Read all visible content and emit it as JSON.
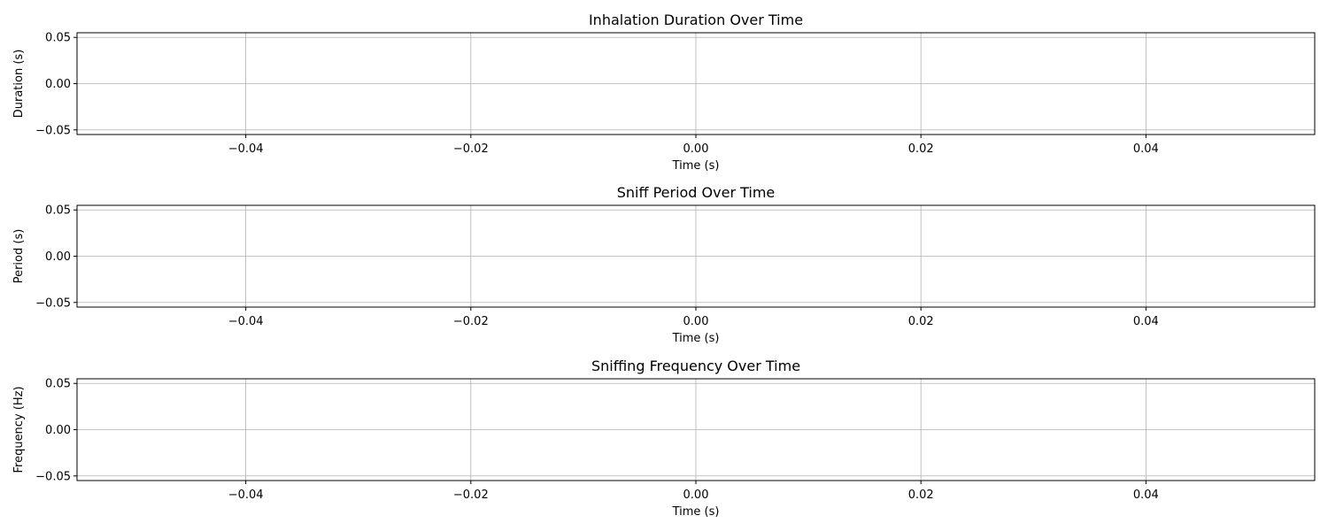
{
  "figure": {
    "grid": true,
    "grid_color": "#b0b0b0",
    "axes_color": "#000000",
    "background": "#ffffff"
  },
  "chart_data": [
    {
      "type": "line",
      "title": "Inhalation Duration Over Time",
      "xlabel": "Time (s)",
      "ylabel": "Duration (s)",
      "xlim": [
        -0.055,
        0.055
      ],
      "ylim": [
        -0.055,
        0.055
      ],
      "xticks": [
        -0.04,
        -0.02,
        0.0,
        0.02,
        0.04
      ],
      "xtick_labels": [
        "−0.04",
        "−0.02",
        "0.00",
        "0.02",
        "0.04"
      ],
      "yticks": [
        0.05,
        0.0,
        -0.05
      ],
      "ytick_labels": [
        "0.05",
        "0.00",
        "−0.05"
      ],
      "grid": true,
      "series": []
    },
    {
      "type": "line",
      "title": "Sniff Period Over Time",
      "xlabel": "Time (s)",
      "ylabel": "Period (s)",
      "xlim": [
        -0.055,
        0.055
      ],
      "ylim": [
        -0.055,
        0.055
      ],
      "xticks": [
        -0.04,
        -0.02,
        0.0,
        0.02,
        0.04
      ],
      "xtick_labels": [
        "−0.04",
        "−0.02",
        "0.00",
        "0.02",
        "0.04"
      ],
      "yticks": [
        0.05,
        0.0,
        -0.05
      ],
      "ytick_labels": [
        "0.05",
        "0.00",
        "−0.05"
      ],
      "grid": true,
      "series": []
    },
    {
      "type": "line",
      "title": "Sniffing Frequency Over Time",
      "xlabel": "Time (s)",
      "ylabel": "Frequency (Hz)",
      "xlim": [
        -0.055,
        0.055
      ],
      "ylim": [
        -0.055,
        0.055
      ],
      "xticks": [
        -0.04,
        -0.02,
        0.0,
        0.02,
        0.04
      ],
      "xtick_labels": [
        "−0.04",
        "−0.02",
        "0.00",
        "0.02",
        "0.04"
      ],
      "yticks": [
        0.05,
        0.0,
        -0.05
      ],
      "ytick_labels": [
        "0.05",
        "0.00",
        "−0.05"
      ],
      "grid": true,
      "series": []
    }
  ]
}
